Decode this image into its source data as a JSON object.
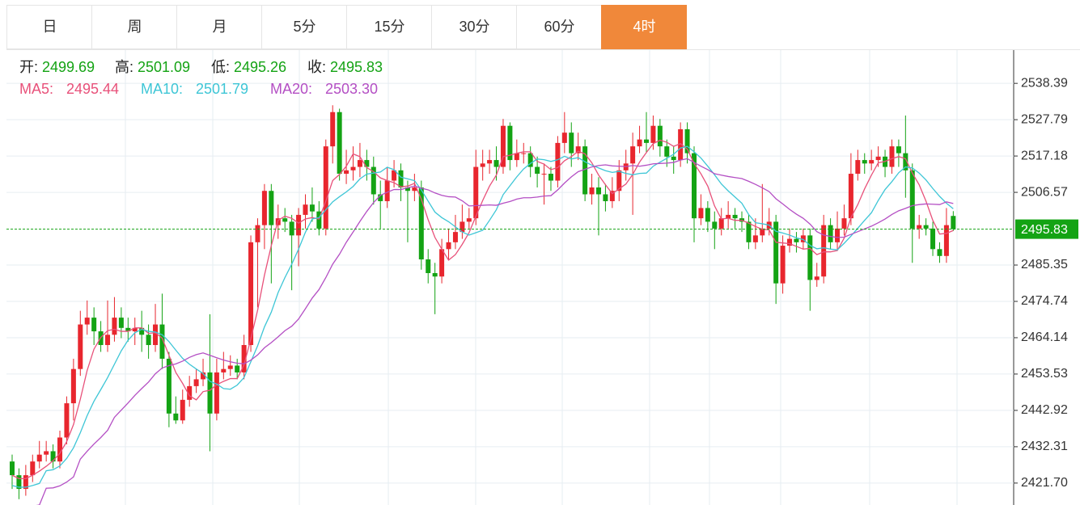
{
  "tabs": [
    "日",
    "周",
    "月",
    "5分",
    "15分",
    "30分",
    "60分",
    "4时"
  ],
  "active_tab": 7,
  "chart_data": {
    "type": "candlestick",
    "readout": {
      "labels": [
        "开:",
        "高:",
        "低:",
        "收:"
      ],
      "values": [
        2499.69,
        2501.09,
        2495.26,
        2495.83
      ]
    },
    "up_color": "#e8262e",
    "down_color": "#14a314",
    "ylim": [
      2415.3,
      2548.1
    ],
    "yticks": [
      {
        "value": 2421.7,
        "label": "2421.70"
      },
      2432.31,
      2442.92,
      2453.53,
      2464.14,
      2474.74,
      2485.35,
      2506.57,
      2517.18,
      2527.79,
      2538.39
    ],
    "grid": true,
    "open": [
      2428,
      2424,
      2420,
      2424,
      2428,
      2430,
      2431,
      2428,
      2435,
      2445,
      2455,
      2468,
      2470,
      2466,
      2462,
      2465,
      2470,
      2467,
      2466,
      2467,
      2465,
      2462,
      2468,
      2458,
      2442,
      2440,
      2446,
      2450,
      2452,
      2454,
      2442,
      2454,
      2455,
      2456,
      2454,
      2462,
      2492,
      2497,
      2507,
      2497,
      2499,
      2498,
      2494,
      2500,
      2503,
      2501,
      2496,
      2520,
      2530,
      2512,
      2513,
      2514,
      2516,
      2514,
      2506,
      2504,
      2510,
      2513,
      2508,
      2507,
      2508,
      2487,
      2483,
      2482,
      2490,
      2492,
      2495,
      2498,
      2499,
      2514,
      2515,
      2516,
      2514,
      2526,
      2516,
      2518,
      2518,
      2514,
      2512,
      2512,
      2510,
      2521,
      2524,
      2518,
      2520,
      2506,
      2508,
      2506,
      2504,
      2507,
      2513,
      2515,
      2520,
      2522,
      2521,
      2526,
      2520,
      2517,
      2516,
      2525,
      2518,
      2499,
      2502,
      2498,
      2496,
      2499,
      2500,
      2499,
      2498,
      2492,
      2494,
      2496,
      2498,
      2480,
      2491,
      2493,
      2492,
      2494,
      2481,
      2482,
      2497,
      2492,
      2496,
      2499,
      2512,
      2516,
      2515,
      2516,
      2517,
      2514,
      2520,
      2518,
      2513,
      2496,
      2497,
      2496,
      2490,
      2488,
      2499.69
    ],
    "high": [
      2430,
      2426,
      2427,
      2430,
      2434,
      2434,
      2433,
      2437,
      2447,
      2458,
      2472,
      2475,
      2473,
      2469,
      2475,
      2476,
      2473,
      2470,
      2470,
      2472,
      2468,
      2474,
      2477,
      2460,
      2447,
      2449,
      2453,
      2455,
      2458,
      2471,
      2458,
      2460,
      2459,
      2458,
      2465,
      2494,
      2499,
      2509,
      2509,
      2503,
      2502,
      2500,
      2502,
      2506,
      2508,
      2504,
      2522,
      2532,
      2531,
      2519,
      2520,
      2521,
      2519,
      2517,
      2510,
      2514,
      2516,
      2515,
      2510,
      2512,
      2510,
      2490,
      2486,
      2493,
      2496,
      2500,
      2503,
      2502,
      2519,
      2519,
      2519,
      2520,
      2528,
      2527,
      2522,
      2521,
      2520,
      2517,
      2515,
      2514,
      2523,
      2530,
      2527,
      2524,
      2522,
      2512,
      2511,
      2509,
      2511,
      2516,
      2519,
      2524,
      2526,
      2530,
      2529,
      2528,
      2522,
      2520,
      2527,
      2527,
      2520,
      2506,
      2504,
      2501,
      2502,
      2504,
      2502,
      2501,
      2500,
      2499,
      2509,
      2502,
      2500,
      2494,
      2496,
      2495,
      2496,
      2496,
      2486,
      2500,
      2499,
      2501,
      2503,
      2518,
      2519,
      2518,
      2519,
      2520,
      2519,
      2522,
      2522,
      2529,
      2515,
      2500,
      2499,
      2498,
      2492,
      2502,
      2501.09
    ],
    "low": [
      2420,
      2417,
      2418,
      2422,
      2426,
      2428,
      2426,
      2426,
      2433,
      2440,
      2453,
      2465,
      2462,
      2460,
      2460,
      2463,
      2464,
      2463,
      2462,
      2460,
      2458,
      2460,
      2455,
      2438,
      2439,
      2439,
      2444,
      2448,
      2450,
      2431,
      2440,
      2452,
      2453,
      2452,
      2452,
      2460,
      2473,
      2490,
      2480,
      2493,
      2495,
      2478,
      2485,
      2496,
      2498,
      2494,
      2494,
      2515,
      2510,
      2509,
      2510,
      2511,
      2510,
      2503,
      2496,
      2502,
      2508,
      2504,
      2492,
      2504,
      2484,
      2480,
      2471,
      2480,
      2487,
      2490,
      2493,
      2496,
      2497,
      2510,
      2512,
      2510,
      2512,
      2513,
      2514,
      2515,
      2511,
      2508,
      2503,
      2507,
      2508,
      2518,
      2514,
      2516,
      2504,
      2503,
      2494,
      2501,
      2502,
      2504,
      2510,
      2500,
      2518,
      2518,
      2519,
      2517,
      2514,
      2512,
      2514,
      2515,
      2492,
      2497,
      2495,
      2490,
      2494,
      2496,
      2496,
      2495,
      2490,
      2490,
      2492,
      2494,
      2474,
      2477,
      2489,
      2489,
      2490,
      2472,
      2479,
      2480,
      2490,
      2490,
      2494,
      2497,
      2510,
      2512,
      2513,
      2514,
      2511,
      2512,
      2514,
      2505,
      2486,
      2493,
      2494,
      2488,
      2486,
      2486,
      2495.26
    ],
    "close": [
      2424,
      2420,
      2424,
      2428,
      2430,
      2431,
      2428,
      2435,
      2445,
      2455,
      2468,
      2470,
      2466,
      2462,
      2465,
      2470,
      2467,
      2466,
      2467,
      2465,
      2462,
      2468,
      2458,
      2442,
      2440,
      2446,
      2450,
      2452,
      2454,
      2442,
      2454,
      2455,
      2456,
      2454,
      2462,
      2492,
      2497,
      2507,
      2497,
      2499,
      2498,
      2494,
      2500,
      2503,
      2501,
      2496,
      2520,
      2530,
      2512,
      2513,
      2514,
      2516,
      2514,
      2506,
      2504,
      2510,
      2513,
      2508,
      2507,
      2508,
      2487,
      2483,
      2482,
      2490,
      2492,
      2495,
      2498,
      2499,
      2514,
      2515,
      2516,
      2514,
      2526,
      2516,
      2518,
      2518,
      2514,
      2512,
      2512,
      2510,
      2521,
      2524,
      2518,
      2520,
      2506,
      2508,
      2506,
      2504,
      2507,
      2513,
      2515,
      2520,
      2522,
      2521,
      2526,
      2520,
      2517,
      2516,
      2525,
      2518,
      2499,
      2502,
      2498,
      2496,
      2499,
      2500,
      2499,
      2498,
      2492,
      2494,
      2496,
      2498,
      2480,
      2491,
      2493,
      2492,
      2494,
      2481,
      2482,
      2497,
      2492,
      2496,
      2499,
      2512,
      2516,
      2515,
      2516,
      2517,
      2514,
      2520,
      2518,
      2513,
      2496,
      2497,
      2496,
      2490,
      2488,
      2497,
      2495.83
    ],
    "ma": [
      {
        "name": "MA5:",
        "color": "#e8517a",
        "current": {
          "value": 2495.44,
          "label": "2495.44"
        },
        "values": [
          2424,
          2423,
          2423,
          2424,
          2425.2,
          2426.6,
          2428.2,
          2430.4,
          2433.8,
          2438.8,
          2446.2,
          2454.6,
          2460.8,
          2464.2,
          2466.2,
          2466.6,
          2466,
          2466,
          2467,
          2467,
          2465.4,
          2465.6,
          2464,
          2459,
          2454,
          2450.8,
          2447.2,
          2446,
          2448.4,
          2448.8,
          2450.4,
          2451.4,
          2452.2,
          2452.2,
          2456.2,
          2463.8,
          2472.2,
          2482.4,
          2491,
          2498.4,
          2499.6,
          2499,
          2497.6,
          2498.8,
          2499.2,
          2498.8,
          2504,
          2510,
          2511.8,
          2514.2,
          2517.8,
          2517,
          2513.8,
          2512.6,
          2510.8,
          2510,
          2509.4,
          2508.2,
          2508.4,
          2509.2,
          2504.6,
          2498.6,
          2493.4,
          2490,
          2486.8,
          2488.4,
          2491.4,
          2494.8,
          2499.6,
          2504.2,
          2508.4,
          2511.6,
          2517,
          2517.4,
          2518,
          2518.4,
          2518.4,
          2515.6,
          2514.8,
          2513.2,
          2513.8,
          2515.8,
          2517,
          2518.6,
          2517.8,
          2515.2,
          2511.6,
          2508.8,
          2506.2,
          2507.6,
          2509,
          2511.8,
          2515.4,
          2518.2,
          2520.8,
          2521.8,
          2521.2,
          2520,
          2520.8,
          2519.2,
          2515,
          2512,
          2508.4,
          2502.6,
          2498.8,
          2499,
          2498.4,
          2498.4,
          2497.6,
          2496.6,
          2495.8,
          2495.6,
          2492,
          2491.8,
          2491.6,
          2490.8,
          2490,
          2490.2,
          2488.4,
          2489.2,
          2489.2,
          2489.6,
          2493.2,
          2499.2,
          2503,
          2507.6,
          2511.6,
          2515.2,
          2515.6,
          2516.4,
          2517,
          2516.4,
          2512.2,
          2508.8,
          2504,
          2498.4,
          2494.4,
          2494.6,
          2495.44
        ]
      },
      {
        "name": "MA10:",
        "color": "#3ec6d6",
        "current": {
          "value": 2501.79,
          "label": "2501.79"
        },
        "values": [
          2421,
          2420.5,
          2420.5,
          2421,
          2421.6,
          2425.3,
          2425.6,
          2426.7,
          2428.9,
          2432,
          2436.4,
          2441.4,
          2445.6,
          2449,
          2452.5,
          2456.4,
          2460.3,
          2463.4,
          2465.6,
          2466.6,
          2466,
          2465.8,
          2465,
          2463,
          2460.5,
          2458.1,
          2456.4,
          2455,
          2453.7,
          2451.4,
          2450.6,
          2449.3,
          2449.1,
          2450.3,
          2452.5,
          2457.1,
          2461.8,
          2467.3,
          2471.6,
          2477.3,
          2481.7,
          2485.6,
          2490,
          2494.9,
          2498.8,
          2499.2,
          2501.5,
          2503.8,
          2505.3,
          2506.7,
          2508.3,
          2510.5,
          2511.9,
          2512.2,
          2512.5,
          2513.9,
          2513.2,
          2511,
          2510.5,
          2510,
          2507.3,
          2504,
          2500.8,
          2499.2,
          2498,
          2496.5,
          2495,
          2494.1,
          2494.8,
          2495.5,
          2498.4,
          2501.5,
          2505.9,
          2508.5,
          2511.1,
          2513.4,
          2515,
          2516.3,
          2516.1,
          2515.6,
          2516.1,
          2517.1,
          2516.3,
          2516.7,
          2515.5,
          2514.5,
          2513.7,
          2512.9,
          2512.4,
          2512.7,
          2512.1,
          2511.7,
          2512.1,
          2512.2,
          2514.2,
          2515.4,
          2516.5,
          2517.7,
          2519.5,
          2520,
          2518.4,
          2516.6,
          2514.2,
          2511.7,
          2509,
          2507,
          2505.2,
          2503.4,
          2500.1,
          2497.7,
          2497.4,
          2497,
          2495.2,
          2494.7,
          2494.1,
          2493.3,
          2492.8,
          2491.1,
          2490.1,
          2490.4,
          2490,
          2489.8,
          2491.7,
          2493.8,
          2496.1,
          2498.4,
          2500.6,
          2504.2,
          2507.4,
          2509.7,
          2512.3,
          2514,
          2513.7,
          2512.2,
          2510.2,
          2507.7,
          2505.4,
          2503.4,
          2501.79
        ]
      },
      {
        "name": "MA20:",
        "color": "#b44fc4",
        "current": {
          "value": 2503.3,
          "label": "2503.30"
        },
        "values": [
          2415,
          2414.8,
          2414.8,
          2415,
          2415.3,
          2420.2,
          2420.3,
          2420.9,
          2422,
          2423.5,
          2428.7,
          2431,
          2433.1,
          2435,
          2437.1,
          2440.9,
          2443,
          2445.1,
          2447.3,
          2449.3,
          2451.2,
          2453.6,
          2455.3,
          2456,
          2456.5,
          2457.3,
          2458.4,
          2459.2,
          2459.7,
          2459,
          2458.3,
          2457.6,
          2457.1,
          2456.7,
          2456.5,
          2457.6,
          2459.1,
          2461.2,
          2462.7,
          2464.4,
          2466.2,
          2467.5,
          2469.6,
          2472.6,
          2475.7,
          2478.2,
          2481.7,
          2485.6,
          2488.5,
          2492,
          2495,
          2498.1,
          2501,
          2503.6,
          2505.7,
          2506.6,
          2507.4,
          2507.4,
          2507.9,
          2508.4,
          2507.8,
          2507.3,
          2506.4,
          2505.7,
          2505.3,
          2505.2,
          2504.1,
          2502.6,
          2502.7,
          2502.8,
          2502.9,
          2502.8,
          2503.4,
          2503.9,
          2504.6,
          2505,
          2505,
          2505.2,
          2505.5,
          2505.6,
          2507.3,
          2509.3,
          2511.1,
          2512.6,
          2513.3,
          2514,
          2514.4,
          2514.6,
          2514.3,
          2514.2,
          2514.1,
          2514.4,
          2514.2,
          2514.5,
          2514.9,
          2515,
          2515.1,
          2515.3,
          2516,
          2516.4,
          2515.3,
          2514.2,
          2513.2,
          2512,
          2511.6,
          2511.2,
          2510.9,
          2510.6,
          2509.8,
          2508.9,
          2507.9,
          2506.8,
          2504.7,
          2503.2,
          2501.6,
          2500.2,
          2499,
          2497.3,
          2495.1,
          2494.1,
          2493.7,
          2493.4,
          2493.5,
          2494.3,
          2495.1,
          2495.9,
          2496.7,
          2497.7,
          2498.8,
          2500.1,
          2501.2,
          2501.9,
          2502.7,
          2503,
          2503.2,
          2503.1,
          2503,
          2503.8,
          2503.3
        ]
      }
    ]
  }
}
